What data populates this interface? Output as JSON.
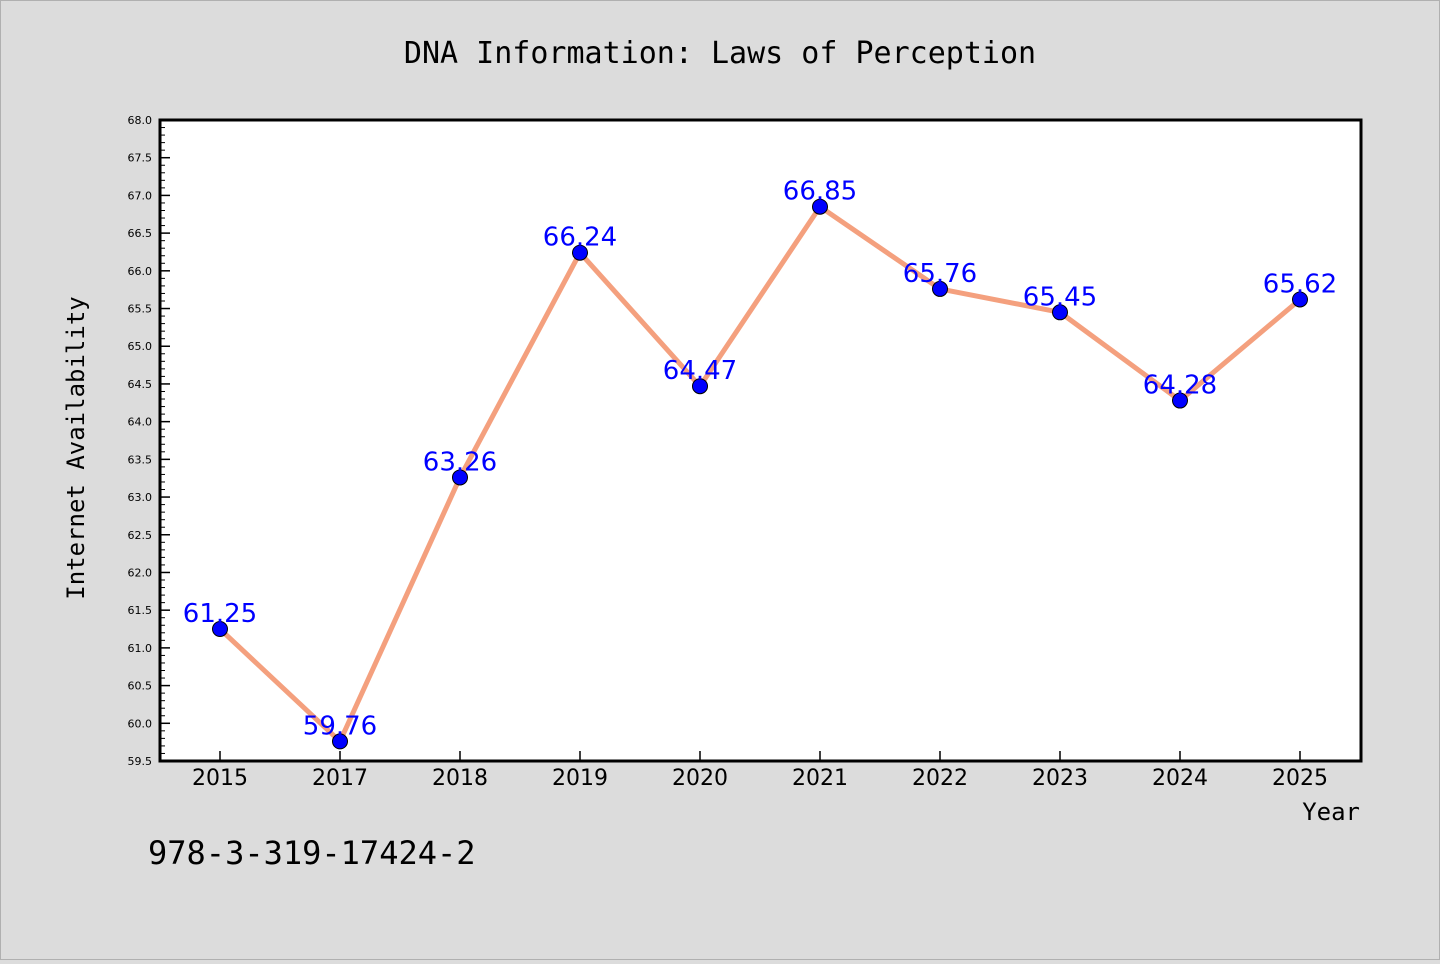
{
  "chart_data": {
    "type": "line",
    "title": "DNA Information: Laws of Perception",
    "xlabel": "Year",
    "ylabel": "Internet Availability",
    "categories": [
      "2015",
      "2017",
      "2018",
      "2019",
      "2020",
      "2021",
      "2022",
      "2023",
      "2024",
      "2025"
    ],
    "series": [
      {
        "values": [
          61.25,
          59.76,
          63.26,
          66.24,
          64.47,
          66.85,
          65.76,
          65.45,
          64.28,
          65.62
        ],
        "data_labels": [
          "61.25",
          "59.76",
          "63.26",
          "66.24",
          "64.47",
          "66.85",
          "65.76",
          "65.45",
          "64.28",
          "65.62"
        ],
        "line_color": "#f4a07e",
        "marker_color": "#0000ff"
      }
    ],
    "ylim": [
      59.5,
      68.0
    ],
    "yticks": [
      "59.5",
      "60.0",
      "60.5",
      "61.0",
      "61.5",
      "62.0",
      "62.5",
      "63.0",
      "63.5",
      "64.0",
      "64.5",
      "65.0",
      "65.5",
      "66.0",
      "66.5",
      "67.0",
      "67.5",
      "68.0"
    ],
    "grid": false,
    "legend": "none"
  },
  "footer": {
    "isbn": "978-3-319-17424-2"
  },
  "colors": {
    "background": "#dcdcdc",
    "plot_area": "#ffffff",
    "axis": "#000000"
  }
}
